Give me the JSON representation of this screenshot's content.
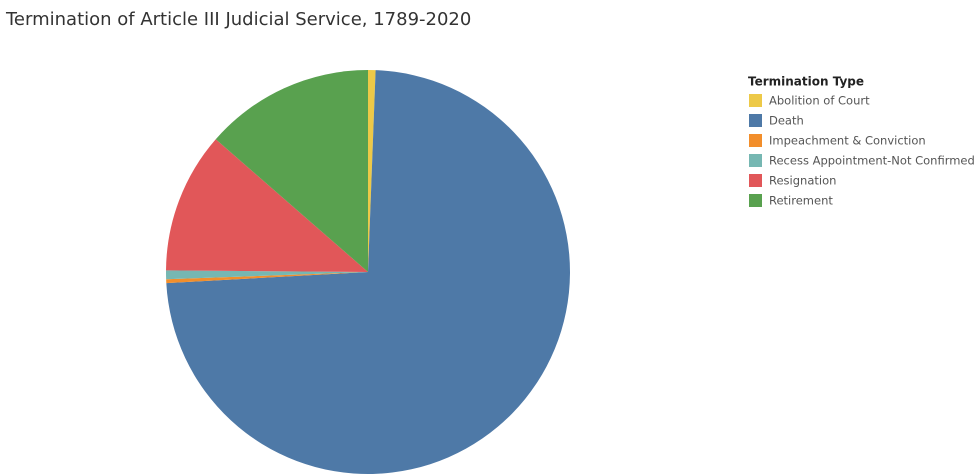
{
  "chart_data": {
    "type": "pie",
    "title": "Termination of Article III Judicial Service, 1789-2020",
    "legend_title": "Termination Type",
    "categories": [
      "Abolition of Court",
      "Death",
      "Impeachment & Conviction",
      "Recess Appointment-Not Confirmed",
      "Resignation",
      "Retirement"
    ],
    "values": [
      0.6,
      73.6,
      0.3,
      0.7,
      11.3,
      13.6
    ],
    "colors": [
      "#edc948",
      "#4e79a7",
      "#f28e2b",
      "#76b7b2",
      "#e15759",
      "#59a14f"
    ],
    "legend_position": "right"
  }
}
